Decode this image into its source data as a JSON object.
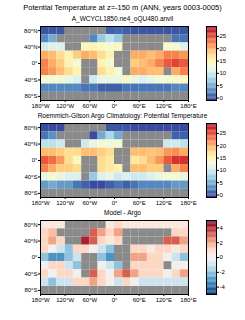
{
  "title": "Potential Temperature at z=-150 m (ANN, years 0003-0005)",
  "chart_data": [
    {
      "type": "heatmap",
      "title": "A_WCYCL1850.ne4_oQU480.anvil",
      "x": [
        -170,
        -150,
        -130,
        -110,
        -90,
        -70,
        -50,
        -30,
        -10,
        10,
        30,
        50,
        70,
        90,
        110,
        130,
        150,
        170
      ],
      "y": [
        80,
        60,
        40,
        20,
        0,
        -20,
        -40,
        -60,
        -80
      ],
      "values": [
        [
          0.5,
          0.5,
          0.5,
          null,
          null,
          null,
          null,
          null,
          1,
          1.5,
          1,
          0.5,
          0.5,
          0.5,
          0.5,
          0.5,
          0.5,
          0.5
        ],
        [
          3,
          5,
          null,
          null,
          null,
          null,
          3,
          7,
          9,
          7,
          null,
          null,
          null,
          null,
          null,
          null,
          2,
          2
        ],
        [
          10,
          11,
          11,
          null,
          null,
          14,
          15,
          14,
          13,
          14,
          null,
          null,
          null,
          null,
          null,
          13,
          13,
          11
        ],
        [
          20,
          19,
          17,
          15,
          18,
          20,
          19,
          17,
          15,
          null,
          null,
          20,
          20,
          19,
          20,
          22,
          22,
          21
        ],
        [
          22,
          20,
          18,
          15,
          13,
          null,
          null,
          15,
          13,
          null,
          null,
          18,
          19,
          20,
          22,
          24,
          25,
          24
        ],
        [
          22,
          21,
          19,
          17,
          15,
          null,
          null,
          17,
          15,
          13,
          null,
          20,
          20,
          19,
          19,
          null,
          20,
          22
        ],
        [
          13,
          13,
          13,
          12,
          11,
          null,
          10,
          12,
          12,
          12,
          14,
          12,
          11,
          12,
          13,
          13,
          14,
          14
        ],
        [
          3,
          3,
          3,
          3,
          3,
          2,
          2,
          1,
          1,
          1,
          2,
          2,
          2,
          2,
          2,
          2,
          3,
          3
        ],
        [
          null,
          null,
          null,
          null,
          null,
          null,
          null,
          null,
          null,
          null,
          null,
          null,
          null,
          null,
          null,
          null,
          null,
          null
        ]
      ],
      "xlim": [
        -180,
        180
      ],
      "ylim": [
        -90,
        90
      ],
      "xticks": [
        {
          "value": -180,
          "label": "180°W"
        },
        {
          "value": -120,
          "label": "120°W"
        },
        {
          "value": -60,
          "label": "60°W"
        },
        {
          "value": 0,
          "label": "0°"
        },
        {
          "value": 60,
          "label": "60°E"
        },
        {
          "value": 120,
          "label": "120°E"
        },
        {
          "value": 180,
          "label": "180°E"
        }
      ],
      "yticks": [
        {
          "value": -80,
          "label": "80°S"
        },
        {
          "value": -40,
          "label": "40°S"
        },
        {
          "value": 0,
          "label": "0°"
        },
        {
          "value": 40,
          "label": "40°N"
        },
        {
          "value": 80,
          "label": "80°N"
        }
      ],
      "color": "RdYlBu_r",
      "colorbar": {
        "range": [
          -1,
          29
        ],
        "ticks": [
          0,
          5,
          10,
          15,
          20,
          25
        ]
      }
    },
    {
      "type": "heatmap",
      "title": "Roemmich-Gilson Argo Climatology: Potential Temperature",
      "x": [
        -170,
        -150,
        -130,
        -110,
        -90,
        -70,
        -50,
        -30,
        -10,
        10,
        30,
        50,
        70,
        90,
        110,
        130,
        150,
        170
      ],
      "y": [
        80,
        60,
        40,
        20,
        0,
        -20,
        -40,
        -60,
        -80
      ],
      "values": [
        [
          0,
          0,
          0,
          null,
          null,
          null,
          null,
          null,
          0.5,
          0.5,
          0.5,
          0,
          0,
          0,
          0,
          0,
          0,
          0
        ],
        [
          2,
          3.5,
          null,
          null,
          null,
          null,
          0,
          5,
          8,
          5,
          null,
          null,
          null,
          null,
          null,
          null,
          1,
          1
        ],
        [
          9,
          9,
          10,
          null,
          null,
          10,
          12,
          13,
          12.5,
          13,
          null,
          null,
          null,
          null,
          null,
          10,
          10,
          9
        ],
        [
          19,
          19,
          18,
          17,
          17,
          19,
          19,
          18,
          17,
          null,
          null,
          19,
          19,
          18.5,
          19,
          21,
          21.5,
          20
        ],
        [
          24,
          23,
          21,
          17,
          14,
          null,
          null,
          17,
          16,
          null,
          null,
          16,
          17,
          19,
          21,
          24,
          26,
          26
        ],
        [
          22,
          20,
          18,
          18,
          17,
          null,
          null,
          17,
          16,
          15,
          null,
          19,
          19,
          18,
          18,
          null,
          20,
          22
        ],
        [
          12,
          13,
          12,
          11,
          11,
          null,
          7,
          11,
          12,
          10,
          11,
          10,
          10,
          11,
          12,
          13,
          13,
          12
        ],
        [
          4,
          5,
          4,
          4,
          2,
          1,
          0,
          0,
          1,
          2,
          1,
          2,
          3,
          3,
          3,
          3,
          4,
          4
        ],
        [
          null,
          null,
          null,
          null,
          null,
          null,
          null,
          null,
          null,
          null,
          null,
          null,
          null,
          null,
          null,
          null,
          null,
          null
        ]
      ],
      "xlim": [
        -180,
        180
      ],
      "ylim": [
        -90,
        90
      ],
      "xticks": [
        {
          "value": -180,
          "label": "180°W"
        },
        {
          "value": -120,
          "label": "120°W"
        },
        {
          "value": -60,
          "label": "60°W"
        },
        {
          "value": 0,
          "label": "0°"
        },
        {
          "value": 60,
          "label": "60°E"
        },
        {
          "value": 120,
          "label": "120°E"
        },
        {
          "value": 180,
          "label": "180°E"
        }
      ],
      "yticks": [
        {
          "value": -80,
          "label": "80°S"
        },
        {
          "value": -40,
          "label": "40°S"
        },
        {
          "value": 0,
          "label": "0°"
        },
        {
          "value": 40,
          "label": "40°N"
        },
        {
          "value": 80,
          "label": "80°N"
        }
      ],
      "color": "RdYlBu_r",
      "colorbar": {
        "range": [
          -1,
          29
        ],
        "ticks": [
          0,
          5,
          10,
          15,
          20,
          25
        ]
      }
    },
    {
      "type": "heatmap",
      "title": "Model - Argo",
      "x": [
        -170,
        -150,
        -130,
        -110,
        -90,
        -70,
        -50,
        -30,
        -10,
        10,
        30,
        50,
        70,
        90,
        110,
        130,
        150,
        170
      ],
      "y": [
        80,
        60,
        40,
        20,
        0,
        -20,
        -40,
        -60,
        -80
      ],
      "values": [
        [
          0.5,
          0.5,
          0.5,
          null,
          null,
          null,
          null,
          null,
          0.5,
          1,
          0.5,
          0.5,
          0.5,
          0.5,
          0.5,
          0.5,
          0.5,
          0.5
        ],
        [
          1,
          1.5,
          null,
          null,
          null,
          null,
          3,
          2,
          1,
          2,
          null,
          null,
          null,
          null,
          null,
          null,
          1,
          1
        ],
        [
          1,
          2,
          1,
          null,
          null,
          4,
          3,
          1,
          0.5,
          1,
          null,
          null,
          null,
          null,
          null,
          3,
          3,
          2
        ],
        [
          1,
          0,
          -1,
          -2,
          1,
          1,
          0,
          -1,
          -2,
          null,
          null,
          1,
          1,
          0.5,
          1,
          1,
          0.5,
          1
        ],
        [
          -2,
          -3,
          -3,
          -2,
          -1,
          null,
          null,
          -2,
          -3,
          null,
          null,
          2,
          2,
          1,
          1,
          0,
          -1,
          -2
        ],
        [
          0,
          1,
          1,
          -1,
          -2,
          null,
          null,
          0,
          -1,
          -2,
          null,
          1,
          1,
          1,
          1,
          null,
          0,
          0
        ],
        [
          1,
          0,
          1,
          1,
          0,
          null,
          3,
          1,
          0,
          2,
          3,
          2,
          1,
          1,
          1,
          0,
          1,
          2
        ],
        [
          -1,
          -2,
          -1,
          -1,
          1,
          1,
          2,
          1,
          0,
          -1,
          1,
          0,
          -1,
          -1,
          -1,
          -1,
          -1,
          -1
        ],
        [
          null,
          null,
          null,
          null,
          null,
          null,
          null,
          null,
          null,
          null,
          null,
          null,
          null,
          null,
          null,
          null,
          null,
          null
        ]
      ],
      "xlim": [
        -180,
        180
      ],
      "ylim": [
        -90,
        90
      ],
      "xticks": [
        {
          "value": -180,
          "label": "180°W"
        },
        {
          "value": -120,
          "label": "120°W"
        },
        {
          "value": -60,
          "label": "60°W"
        },
        {
          "value": 0,
          "label": "0°"
        },
        {
          "value": 60,
          "label": "60°E"
        },
        {
          "value": 120,
          "label": "120°E"
        },
        {
          "value": 180,
          "label": "180°E"
        }
      ],
      "yticks": [
        {
          "value": -80,
          "label": "80°S"
        },
        {
          "value": -40,
          "label": "40°S"
        },
        {
          "value": 0,
          "label": "0°"
        },
        {
          "value": 40,
          "label": "40°N"
        },
        {
          "value": 80,
          "label": "80°N"
        }
      ],
      "color": "RdBu_r",
      "colorbar": {
        "range": [
          -5,
          5
        ],
        "ticks": [
          -4,
          -2,
          0,
          2,
          4
        ]
      }
    }
  ]
}
